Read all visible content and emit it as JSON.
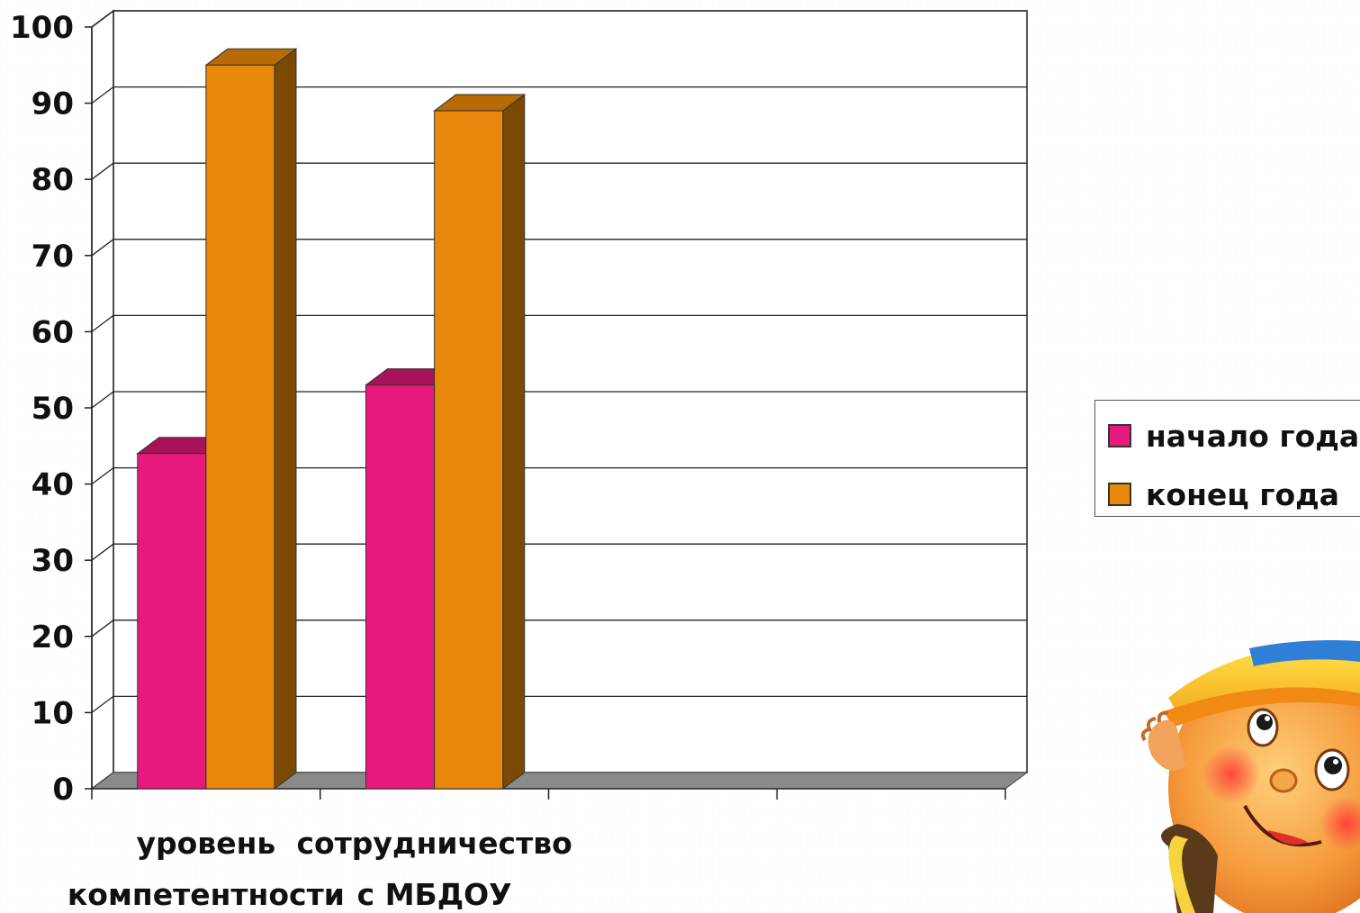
{
  "chart_data": {
    "type": "bar",
    "style": "3d-clustered-column",
    "title": "",
    "xlabel": "",
    "ylabel": "",
    "ylim": [
      0,
      100
    ],
    "yticks": [
      0,
      10,
      20,
      30,
      40,
      50,
      60,
      70,
      80,
      90,
      100
    ],
    "grid": true,
    "legend_position": "right",
    "categories": [
      [
        "уровень",
        "компетентности"
      ],
      [
        "сотрудничество",
        "с МБДОУ"
      ],
      [
        "",
        ""
      ],
      [
        "",
        ""
      ]
    ],
    "series": [
      {
        "name": "начало года",
        "values": [
          44,
          53,
          null,
          null
        ],
        "color": "#e8197c",
        "top_color": "#a8125a"
      },
      {
        "name": "конец года",
        "values": [
          95,
          89,
          null,
          null
        ],
        "color": "#e8880a",
        "side_color": "#7a4a05",
        "top_color": "#b86a06"
      }
    ]
  },
  "legend": {
    "items": [
      {
        "label": "начало года",
        "color": "#e8197c"
      },
      {
        "label": "конец года",
        "color": "#e8880a"
      }
    ]
  },
  "decoration": {
    "mascot_icon": "smiling-bun-character-icon"
  }
}
